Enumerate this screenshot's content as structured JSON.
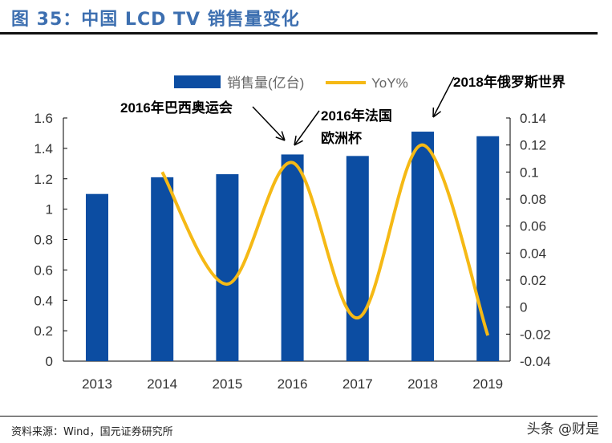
{
  "header": {
    "title": "图 35：中国 LCD TV 销售量变化"
  },
  "footer": {
    "source": "资料来源：Wind，国元证券研究所",
    "watermark": "头条 @财是"
  },
  "colors": {
    "bar": "#0c4da2",
    "line": "#f5b915",
    "title": "#3d6fb0"
  },
  "chart_data": {
    "type": "bar+line",
    "categories": [
      "2013",
      "2014",
      "2015",
      "2016",
      "2017",
      "2018",
      "2019"
    ],
    "series": [
      {
        "name": "销售量(亿台)",
        "type": "bar",
        "axis": "left",
        "values": [
          1.1,
          1.21,
          1.23,
          1.36,
          1.35,
          1.51,
          1.48
        ]
      },
      {
        "name": "YoY%",
        "type": "line",
        "axis": "right",
        "values": [
          null,
          0.1,
          0.017,
          0.107,
          -0.008,
          0.12,
          -0.021
        ]
      }
    ],
    "left_axis": {
      "ylim": [
        0,
        1.6
      ],
      "ticks": [
        "0",
        "0.2",
        "0.4",
        "0.6",
        "0.8",
        "1",
        "1.2",
        "1.4",
        "1.6"
      ]
    },
    "right_axis": {
      "ylim": [
        -0.04,
        0.14
      ],
      "ticks": [
        "-0.04",
        "-0.02",
        "0",
        "0.02",
        "0.04",
        "0.06",
        "0.08",
        "0.1",
        "0.12",
        "0.14"
      ]
    },
    "legend": {
      "placement": "top"
    },
    "annotations": [
      "2016年巴西奥运会",
      "2016年法国\n欧洲杯",
      "2018年俄罗斯世界"
    ],
    "grid": false
  }
}
